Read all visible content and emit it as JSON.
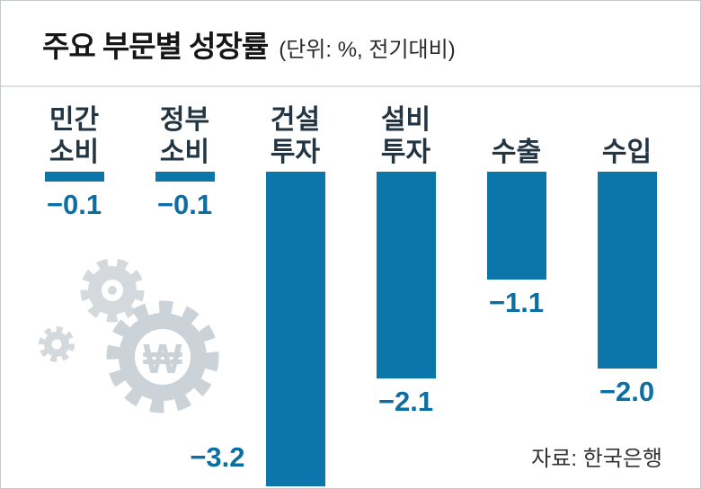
{
  "header": {
    "title": "주요 부문별 성장률",
    "subtitle": "(단위: %, 전기대비)"
  },
  "source": "자료: 한국은행",
  "watermark": {
    "icon": "gears-won-watermark-icon",
    "symbol": "₩"
  },
  "colors": {
    "bar": "#0c76ab",
    "value_label": "#0b6fa4",
    "category_label": "#233543",
    "watermark_gray": "#ccd3d8"
  },
  "chart_data": {
    "type": "bar",
    "title": "주요 부문별 성장률",
    "unit": "%, 전기대비",
    "categories": [
      "민간 소비",
      "정부 소비",
      "건설 투자",
      "설비 투자",
      "수출",
      "수입"
    ],
    "category_lines": [
      [
        "민간",
        "소비"
      ],
      [
        "정부",
        "소비"
      ],
      [
        "건설",
        "투자"
      ],
      [
        "설비",
        "투자"
      ],
      [
        "수출"
      ],
      [
        "수입"
      ]
    ],
    "values": [
      -0.1,
      -0.1,
      -3.2,
      -2.1,
      -1.1,
      -2.0
    ],
    "value_labels": [
      "−0.1",
      "−0.1",
      "−3.2",
      "−2.1",
      "−1.1",
      "−2.0"
    ],
    "value_label_position": [
      "below",
      "below",
      "left",
      "below",
      "below",
      "below"
    ],
    "ylim": [
      -3.2,
      0
    ],
    "baseline": 0,
    "grid": false,
    "legend": false,
    "orientation": "vertical-down"
  }
}
